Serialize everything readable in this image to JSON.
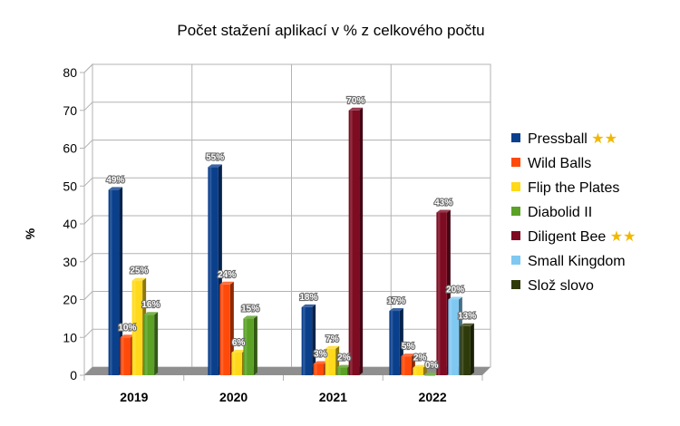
{
  "chart_data": {
    "type": "bar",
    "title": "Počet stažení aplikací v % z celkového počtu",
    "ylabel": "%",
    "xlabel": "",
    "ylim": [
      0,
      80
    ],
    "yticks": [
      "0",
      "10",
      "20",
      "30",
      "40",
      "50",
      "60",
      "70",
      "80"
    ],
    "categories": [
      "2019",
      "2020",
      "2021",
      "2022"
    ],
    "grid": true,
    "legend_position": "right",
    "series": [
      {
        "name": "Pressball",
        "legend_mark": "★★",
        "color": "#0a3f8c",
        "values": [
          49,
          55,
          18,
          17
        ],
        "labels": [
          "49%",
          "55%",
          "18%",
          "17%"
        ]
      },
      {
        "name": "Wild Balls",
        "legend_mark": "",
        "color": "#ff4a0a",
        "values": [
          10,
          24,
          3,
          5
        ],
        "labels": [
          "10%",
          "24%",
          "3%",
          "5%"
        ]
      },
      {
        "name": "Flip the Plates",
        "legend_mark": "",
        "color": "#ffd91a",
        "values": [
          25,
          6,
          7,
          2
        ],
        "labels": [
          "25%",
          "6%",
          "7%",
          "2%"
        ]
      },
      {
        "name": "Diabolid II",
        "legend_mark": "",
        "color": "#5aa126",
        "values": [
          16,
          15,
          2,
          0
        ],
        "labels": [
          "16%",
          "15%",
          "2%",
          "0%"
        ]
      },
      {
        "name": "Diligent Bee",
        "legend_mark": "★★",
        "color": "#7d0b22",
        "values": [
          null,
          null,
          70,
          43
        ],
        "labels": [
          "",
          "",
          "70%",
          "43%"
        ]
      },
      {
        "name": "Small Kingdom",
        "legend_mark": "",
        "color": "#7fc8f2",
        "values": [
          null,
          null,
          null,
          20
        ],
        "labels": [
          "",
          "",
          "",
          "20%"
        ]
      },
      {
        "name": "Slož slovo",
        "legend_mark": "",
        "color": "#2e3a0a",
        "values": [
          null,
          null,
          null,
          13
        ],
        "labels": [
          "",
          "",
          "",
          "13%"
        ]
      }
    ]
  }
}
